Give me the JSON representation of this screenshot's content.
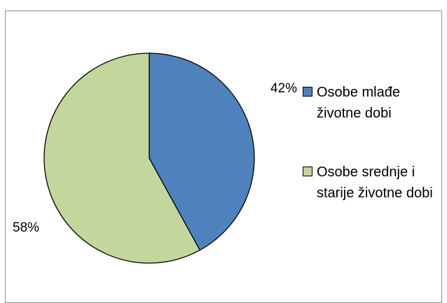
{
  "chart_data": {
    "type": "pie",
    "title": "",
    "slices": [
      {
        "label": "Osobe mlađe životne dobi",
        "value": 42,
        "display": "42%",
        "color": "#4f81bd"
      },
      {
        "label": "Osobe srednje i starije životne dobi",
        "value": 58,
        "display": "58%",
        "color": "#c3d69b"
      }
    ],
    "start_angle_deg": 0,
    "direction": "clockwise",
    "legend_position": "right",
    "slice_border_color": "#000000"
  }
}
